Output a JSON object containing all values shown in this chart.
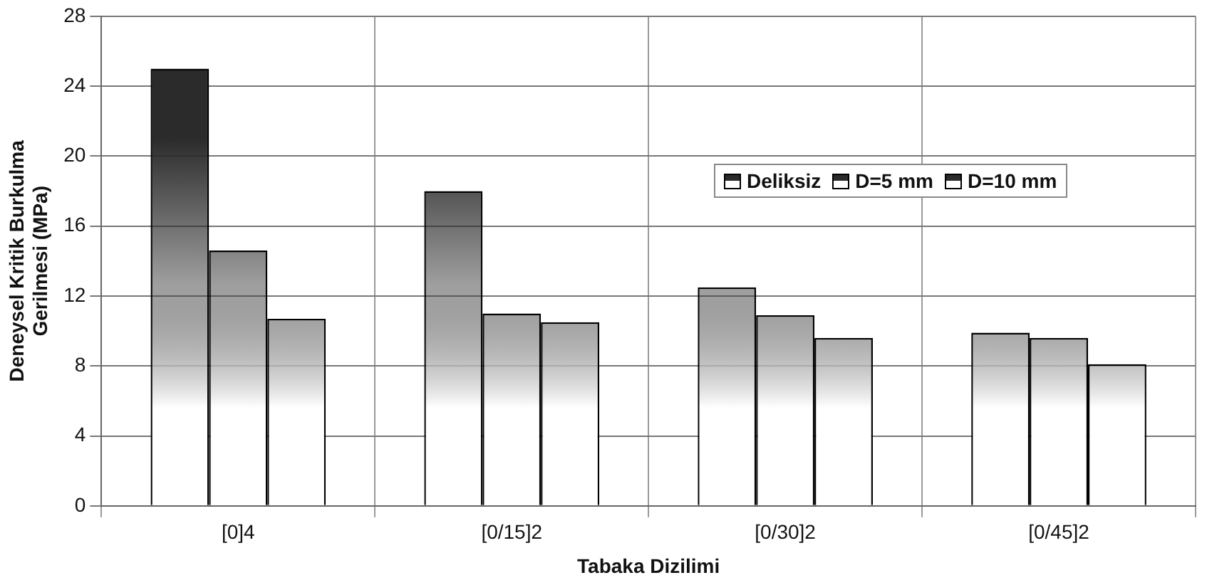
{
  "chart_data": {
    "type": "bar",
    "xlabel": "Tabaka Dizilimi",
    "ylabel": "Deneysel Kritik Burkulma\nGerilmesi (MPa)",
    "categories": [
      "[0]4",
      "[0/15]2",
      "[0/30]2",
      "[0/45]2"
    ],
    "series": [
      {
        "name": "Deliksiz",
        "color": "#2b2b2b",
        "values": [
          25.0,
          18.0,
          12.5,
          9.9
        ]
      },
      {
        "name": "D=5 mm",
        "color": "#2b2b2b",
        "values": [
          14.6,
          11.0,
          10.9,
          9.6
        ]
      },
      {
        "name": "D=10 mm",
        "color": "#2b2b2b",
        "values": [
          10.7,
          10.5,
          9.6,
          8.1
        ]
      }
    ],
    "ylim": [
      0,
      28
    ],
    "yticks": [
      0,
      4,
      8,
      12,
      16,
      20,
      24,
      28
    ],
    "grid": true,
    "legend": "top right"
  }
}
